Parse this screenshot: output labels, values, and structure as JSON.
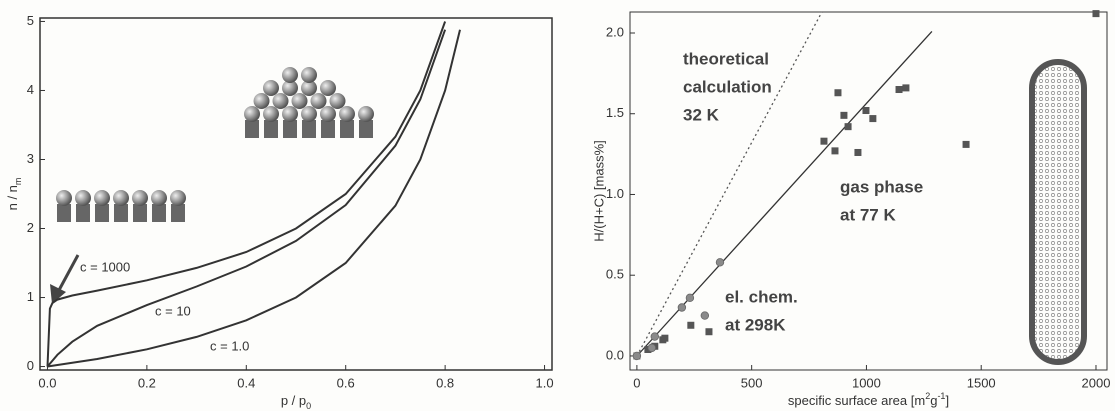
{
  "chart_data": [
    {
      "type": "line",
      "xlabel": {
        "text": "p / p",
        "sub": "0"
      },
      "ylabel": {
        "text": "n / n",
        "sub": "m"
      },
      "xlim": [
        -0.015,
        1.015
      ],
      "ylim": [
        -0.05,
        5.05
      ],
      "xticks": [
        {
          "value": 0,
          "label": "0.0"
        },
        {
          "value": 0.2,
          "label": "0.2"
        },
        {
          "value": 0.4,
          "label": "0.4"
        },
        {
          "value": 0.6,
          "label": "0.6"
        },
        {
          "value": 0.8,
          "label": "0.8"
        },
        {
          "value": 1,
          "label": "1.0"
        }
      ],
      "yticks": [
        0,
        1,
        2,
        3,
        4,
        5
      ],
      "series": [
        {
          "name": "c = 1000",
          "color": "#333333",
          "x": [
            0,
            0.005,
            0.01,
            0.02,
            0.05,
            0.1,
            0.2,
            0.3,
            0.4,
            0.5,
            0.6,
            0.7,
            0.75,
            0.8
          ],
          "values": [
            0,
            0.84,
            0.92,
            0.97,
            1.03,
            1.1,
            1.25,
            1.43,
            1.66,
            2.0,
            2.5,
            3.33,
            4.0,
            5.0
          ]
        },
        {
          "name": "c = 10",
          "color": "#333333",
          "x": [
            0,
            0.02,
            0.05,
            0.1,
            0.2,
            0.3,
            0.4,
            0.5,
            0.6,
            0.7,
            0.75,
            0.8
          ],
          "values": [
            0,
            0.17,
            0.36,
            0.59,
            0.89,
            1.16,
            1.45,
            1.82,
            2.34,
            3.2,
            3.87,
            4.88
          ]
        },
        {
          "name": "c = 1.0",
          "color": "#333333",
          "x": [
            0,
            0.1,
            0.2,
            0.3,
            0.4,
            0.5,
            0.6,
            0.7,
            0.75,
            0.8,
            0.83
          ],
          "values": [
            0,
            0.11,
            0.25,
            0.43,
            0.67,
            1.0,
            1.5,
            2.33,
            3.0,
            4.0,
            4.88
          ]
        }
      ]
    },
    {
      "type": "scatter",
      "xlabel": [
        {
          "text": "specific surface area [m"
        },
        {
          "sup": "2"
        },
        {
          "text": "g"
        },
        {
          "sup": "-1"
        },
        {
          "text": "]"
        }
      ],
      "ylabel": "H/(H+C) [mass%]",
      "xlim": [
        -30,
        2048
      ],
      "ylim": [
        -0.087,
        2.13
      ],
      "xticks": [
        0,
        500,
        1000,
        1500,
        2000
      ],
      "yticks": [
        {
          "value": 0,
          "label": "0.0"
        },
        {
          "value": 0.5,
          "label": "0.5"
        },
        {
          "value": 1,
          "label": "1.0"
        },
        {
          "value": 1.5,
          "label": "1.5"
        },
        {
          "value": 2,
          "label": "2.0"
        }
      ],
      "series": [
        {
          "name": [
            "theoretical",
            "calculation",
            "32 K"
          ],
          "marker": "none",
          "dash": true,
          "color": "#555555",
          "x": [
            0,
            806
          ],
          "values": [
            0,
            2.13
          ]
        },
        {
          "marker": "none",
          "dash": false,
          "color": "#333333",
          "x": [
            0,
            1285
          ],
          "values": [
            0,
            2.01
          ]
        },
        {
          "name": [
            "gas phase",
            "at 77 K"
          ],
          "marker": "square",
          "color": "#555555",
          "x": [
            0,
            48,
            78,
            113,
            122,
            235,
            314,
            815,
            863,
            876,
            902,
            920,
            963,
            998,
            1028,
            1142,
            1172,
            1434,
            2000
          ],
          "values": [
            0,
            0.04,
            0.06,
            0.1,
            0.11,
            0.19,
            0.15,
            1.33,
            1.27,
            1.63,
            1.49,
            1.42,
            1.26,
            1.52,
            1.47,
            1.65,
            1.66,
            1.31,
            2.12
          ]
        },
        {
          "name": [
            "el. chem.",
            "at 298K"
          ],
          "marker": "circle",
          "color": "#8a8a8a",
          "x": [
            0,
            65,
            78,
            196,
            231,
            296,
            362
          ],
          "values": [
            0,
            0.05,
            0.12,
            0.3,
            0.36,
            0.25,
            0.58
          ]
        }
      ]
    }
  ]
}
